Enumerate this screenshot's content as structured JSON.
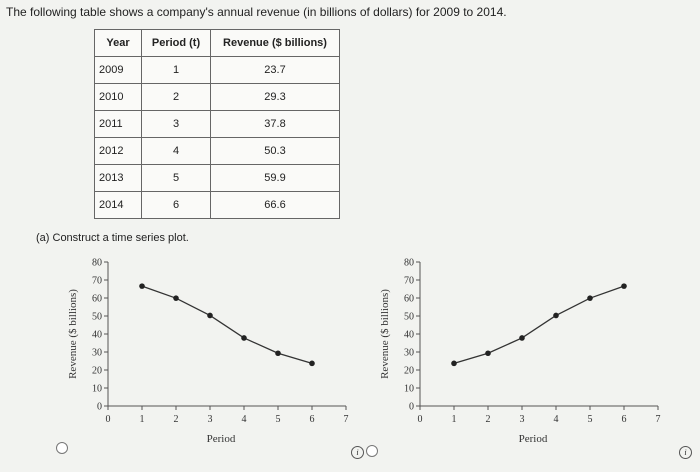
{
  "question": {
    "prompt": "The following table shows a company's annual revenue (in billions of dollars) for 2009 to 2014.",
    "part_a": "(a)  Construct a time series plot."
  },
  "table": {
    "headers": [
      "Year",
      "Period (t)",
      "Revenue ($ billions)"
    ],
    "rows": [
      [
        "2009",
        "1",
        "23.7"
      ],
      [
        "2010",
        "2",
        "29.3"
      ],
      [
        "2011",
        "3",
        "37.8"
      ],
      [
        "2012",
        "4",
        "50.3"
      ],
      [
        "2013",
        "5",
        "59.9"
      ],
      [
        "2014",
        "6",
        "66.6"
      ]
    ]
  },
  "chart_data": [
    {
      "type": "line",
      "xlabel": "Period",
      "ylabel": "Revenue ($ billions)",
      "xlim": [
        0,
        7
      ],
      "ylim": [
        0,
        80
      ],
      "xticks": [
        0,
        1,
        2,
        3,
        4,
        5,
        6,
        7
      ],
      "yticks": [
        0,
        10,
        20,
        30,
        40,
        50,
        60,
        70,
        80
      ],
      "x": [
        1,
        2,
        3,
        4,
        5,
        6
      ],
      "y": [
        66.6,
        59.9,
        50.3,
        37.8,
        29.3,
        23.7
      ]
    },
    {
      "type": "line",
      "xlabel": "Period",
      "ylabel": "Revenue ($ billions)",
      "xlim": [
        0,
        7
      ],
      "ylim": [
        0,
        80
      ],
      "xticks": [
        0,
        1,
        2,
        3,
        4,
        5,
        6,
        7
      ],
      "yticks": [
        0,
        10,
        20,
        30,
        40,
        50,
        60,
        70,
        80
      ],
      "x": [
        1,
        2,
        3,
        4,
        5,
        6
      ],
      "y": [
        23.7,
        29.3,
        37.8,
        50.3,
        59.9,
        66.6
      ]
    }
  ],
  "colors": {
    "line": "#333333",
    "marker": "#222222",
    "axis": "#555555"
  }
}
